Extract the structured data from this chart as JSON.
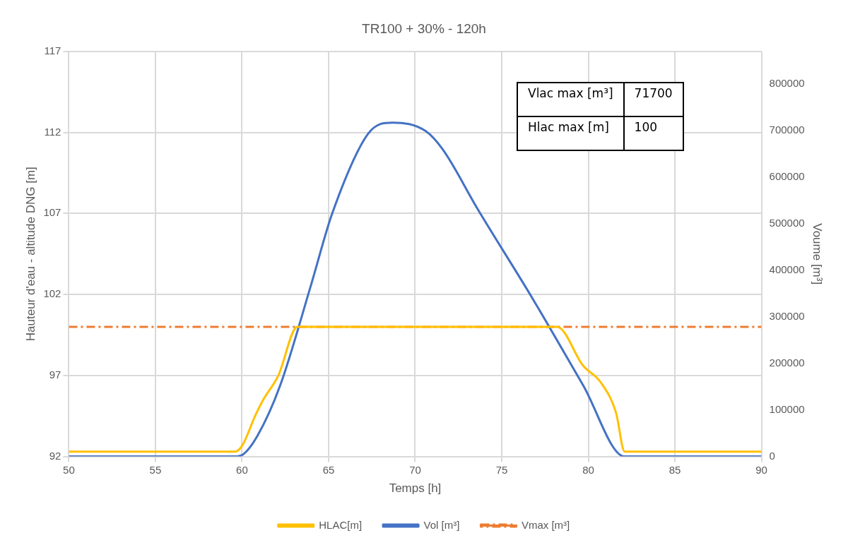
{
  "chart_data": {
    "type": "line",
    "title": "TR100 + 30% - 120h",
    "xlabel": "Temps [h]",
    "ylabel": "Hauteur d'eau - altitude DNG [m]",
    "y2label": "Voume [m³]",
    "xlim": [
      50,
      90
    ],
    "xticks": [
      50,
      55,
      60,
      65,
      70,
      75,
      80,
      85,
      90
    ],
    "ylim": [
      92,
      117
    ],
    "yticks": [
      92,
      97,
      102,
      107,
      112,
      117
    ],
    "y2lim": [
      0,
      870000
    ],
    "y2ticks": [
      0,
      100000,
      200000,
      300000,
      400000,
      500000,
      600000,
      700000,
      800000
    ],
    "grid": true,
    "legend": "bottom",
    "marker": "none",
    "annotations": [
      "Vlac max [m³]",
      "71700",
      "Hlac max [m]",
      "100"
    ],
    "series": [
      {
        "name": "HLAC[m]",
        "color": "#ffc000",
        "x": [
          50,
          59.6,
          60.0,
          60.8,
          61.2,
          62.1,
          63.2,
          78.2,
          79.7,
          80.7,
          81.6,
          82.1,
          90
        ],
        "values": [
          92.3,
          92.3,
          92.65,
          94.6,
          95.45,
          97.0,
          100,
          100,
          97.6,
          96.6,
          94.7,
          92.3,
          92.3
        ]
      },
      {
        "name": "Vol [m³]",
        "color": "#4472c4",
        "axis": "y2",
        "x": [
          50,
          59.6,
          60.0,
          60.9,
          62.2,
          64.0,
          65.2,
          67.3,
          68.7,
          70.6,
          71.6,
          73.6,
          76.8,
          79.7,
          82.1,
          90
        ],
        "values": [
          0,
          0,
          3000,
          45000,
          152000,
          370000,
          521000,
          694000,
          717000,
          699000,
          659000,
          532000,
          338000,
          153000,
          0,
          0
        ]
      },
      {
        "name": "Vmax [m³]",
        "color": "#ed7d31",
        "line_style": "dashed",
        "x": [
          50,
          90
        ],
        "values": [
          100,
          100
        ]
      }
    ]
  }
}
